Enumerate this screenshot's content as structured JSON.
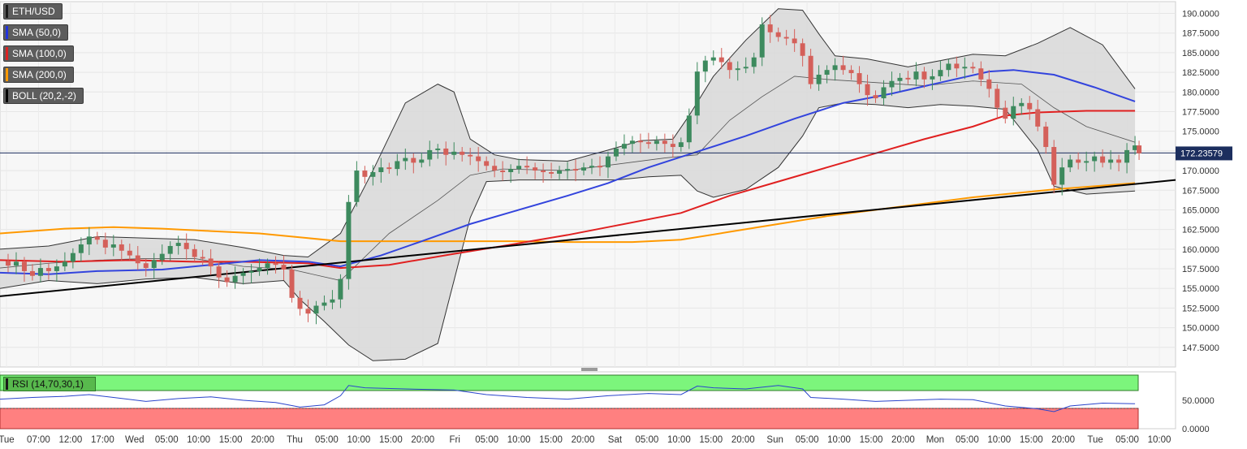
{
  "legend": [
    {
      "label": "ETH/USD",
      "color": "#1a1a1a"
    },
    {
      "label": "SMA (50,0)",
      "color": "#2233dd"
    },
    {
      "label": "SMA (100,0)",
      "color": "#dd2222"
    },
    {
      "label": "SMA (200,0)",
      "color": "#ff9900"
    },
    {
      "label": "BOLL (20,2,-2)",
      "color": "#000000"
    }
  ],
  "rsi_label": "RSI (14,70,30,1)",
  "current_price_label": "172.23579",
  "colors": {
    "bull": "#3d8a5e",
    "bear": "#d4605a",
    "sma50": "#3344dd",
    "sma100": "#e02020",
    "sma200": "#ff9900",
    "trend": "#000000",
    "rsi_line": "#2a44cc",
    "rsi_overbought": "#7cf57c",
    "rsi_oversold": "#ff8080"
  },
  "chart_data": {
    "type": "candlestick",
    "y_range": [
      145.0,
      191.5
    ],
    "y_ticks": [
      "190.0000",
      "187.5000",
      "185.0000",
      "182.5000",
      "180.0000",
      "177.5000",
      "175.0000",
      "172.5000",
      "170.0000",
      "167.5000",
      "165.0000",
      "162.5000",
      "160.0000",
      "157.5000",
      "155.0000",
      "152.5000",
      "150.0000",
      "147.5000"
    ],
    "current_price": 172.23579,
    "x_ticks": [
      "Tue",
      "07:00",
      "12:00",
      "17:00",
      "Wed",
      "05:00",
      "10:00",
      "15:00",
      "20:00",
      "Thu",
      "05:00",
      "10:00",
      "15:00",
      "20:00",
      "Fri",
      "05:00",
      "10:00",
      "15:00",
      "20:00",
      "Sat",
      "05:00",
      "10:00",
      "15:00",
      "20:00",
      "Sun",
      "05:00",
      "10:00",
      "15:00",
      "20:00",
      "Mon",
      "05:00",
      "10:00",
      "15:00",
      "20:00",
      "Tue",
      "05:00",
      "10:00"
    ],
    "close_path": [
      [
        0,
        158.5
      ],
      [
        10,
        157.9
      ],
      [
        20,
        158.4
      ],
      [
        30,
        157.2
      ],
      [
        40,
        156.6
      ],
      [
        50,
        157.6
      ],
      [
        60,
        157.2
      ],
      [
        70,
        157.8
      ],
      [
        80,
        158.4
      ],
      [
        90,
        159.5
      ],
      [
        100,
        160.6
      ],
      [
        110,
        161.6
      ],
      [
        120,
        161.2
      ],
      [
        130,
        160.2
      ],
      [
        140,
        160.6
      ],
      [
        150,
        159.8
      ],
      [
        160,
        159.2
      ],
      [
        170,
        158.2
      ],
      [
        180,
        157.6
      ],
      [
        190,
        158.6
      ],
      [
        200,
        159.4
      ],
      [
        210,
        160.4
      ],
      [
        220,
        160.8
      ],
      [
        230,
        160.0
      ],
      [
        240,
        159.0
      ],
      [
        250,
        158.8
      ],
      [
        260,
        157.8
      ],
      [
        270,
        156.4
      ],
      [
        280,
        155.8
      ],
      [
        290,
        156.6
      ],
      [
        300,
        157.0
      ],
      [
        310,
        157.2
      ],
      [
        320,
        157.6
      ],
      [
        330,
        158.2
      ],
      [
        340,
        158.0
      ],
      [
        350,
        157.4
      ],
      [
        360,
        153.8
      ],
      [
        370,
        152.4
      ],
      [
        380,
        151.8
      ],
      [
        390,
        152.8
      ],
      [
        400,
        153.2
      ],
      [
        410,
        153.6
      ],
      [
        420,
        156.2
      ],
      [
        430,
        166.0
      ],
      [
        440,
        170.0
      ],
      [
        450,
        169.2
      ],
      [
        460,
        169.8
      ],
      [
        470,
        170.4
      ],
      [
        480,
        170.2
      ],
      [
        490,
        171.2
      ],
      [
        500,
        171.6
      ],
      [
        510,
        171.0
      ],
      [
        520,
        171.4
      ],
      [
        530,
        172.6
      ],
      [
        540,
        172.8
      ],
      [
        550,
        172.0
      ],
      [
        560,
        172.4
      ],
      [
        570,
        172.0
      ],
      [
        580,
        171.8
      ],
      [
        590,
        171.2
      ],
      [
        600,
        170.6
      ],
      [
        610,
        170.0
      ],
      [
        620,
        169.8
      ],
      [
        630,
        170.2
      ],
      [
        640,
        170.6
      ],
      [
        650,
        170.4
      ],
      [
        660,
        170.0
      ],
      [
        670,
        169.8
      ],
      [
        680,
        169.6
      ],
      [
        690,
        170.0
      ],
      [
        700,
        170.2
      ],
      [
        710,
        170.0
      ],
      [
        720,
        170.4
      ],
      [
        730,
        170.6
      ],
      [
        740,
        170.4
      ],
      [
        750,
        171.8
      ],
      [
        760,
        172.8
      ],
      [
        770,
        173.4
      ],
      [
        780,
        173.8
      ],
      [
        790,
        173.6
      ],
      [
        800,
        173.4
      ],
      [
        810,
        173.8
      ],
      [
        820,
        173.4
      ],
      [
        830,
        173.0
      ],
      [
        840,
        173.6
      ],
      [
        850,
        177.0
      ],
      [
        860,
        182.6
      ],
      [
        870,
        184.0
      ],
      [
        880,
        184.4
      ],
      [
        890,
        183.8
      ],
      [
        900,
        182.8
      ],
      [
        910,
        183.0
      ],
      [
        920,
        183.2
      ],
      [
        930,
        184.4
      ],
      [
        940,
        188.6
      ],
      [
        950,
        187.6
      ],
      [
        960,
        187.0
      ],
      [
        970,
        186.8
      ],
      [
        980,
        186.2
      ],
      [
        990,
        184.6
      ],
      [
        1000,
        181.0
      ],
      [
        1010,
        182.2
      ],
      [
        1020,
        182.8
      ],
      [
        1030,
        183.4
      ],
      [
        1040,
        182.8
      ],
      [
        1050,
        182.4
      ],
      [
        1060,
        181.0
      ],
      [
        1070,
        179.6
      ],
      [
        1080,
        179.2
      ],
      [
        1090,
        180.6
      ],
      [
        1100,
        181.4
      ],
      [
        1110,
        181.8
      ],
      [
        1120,
        181.6
      ],
      [
        1130,
        182.6
      ],
      [
        1140,
        181.6
      ],
      [
        1150,
        182.0
      ],
      [
        1160,
        182.8
      ],
      [
        1170,
        183.6
      ],
      [
        1180,
        183.0
      ],
      [
        1190,
        183.2
      ],
      [
        1200,
        183.0
      ],
      [
        1210,
        181.6
      ],
      [
        1220,
        180.4
      ],
      [
        1230,
        178.0
      ],
      [
        1240,
        176.6
      ],
      [
        1250,
        178.2
      ],
      [
        1260,
        178.6
      ],
      [
        1270,
        177.8
      ],
      [
        1280,
        175.6
      ],
      [
        1290,
        173.0
      ],
      [
        1300,
        168.2
      ],
      [
        1310,
        170.4
      ],
      [
        1320,
        171.4
      ],
      [
        1330,
        171.0
      ],
      [
        1340,
        171.2
      ],
      [
        1350,
        171.8
      ],
      [
        1360,
        171.0
      ],
      [
        1370,
        171.4
      ],
      [
        1380,
        171.0
      ],
      [
        1390,
        172.6
      ],
      [
        1400,
        173.2
      ],
      [
        1405,
        172.2
      ]
    ],
    "sma50": [
      [
        0,
        157.0
      ],
      [
        60,
        156.8
      ],
      [
        120,
        157.2
      ],
      [
        200,
        157.4
      ],
      [
        260,
        158.0
      ],
      [
        320,
        158.6
      ],
      [
        380,
        158.4
      ],
      [
        420,
        157.8
      ],
      [
        470,
        159.2
      ],
      [
        520,
        161.0
      ],
      [
        580,
        163.2
      ],
      [
        640,
        165.0
      ],
      [
        700,
        166.8
      ],
      [
        750,
        168.4
      ],
      [
        800,
        170.4
      ],
      [
        860,
        172.4
      ],
      [
        920,
        174.4
      ],
      [
        980,
        176.6
      ],
      [
        1040,
        178.6
      ],
      [
        1100,
        179.8
      ],
      [
        1160,
        181.2
      ],
      [
        1220,
        182.6
      ],
      [
        1250,
        182.8
      ],
      [
        1300,
        182.2
      ],
      [
        1350,
        180.6
      ],
      [
        1400,
        178.8
      ]
    ],
    "sma100": [
      [
        0,
        158.6
      ],
      [
        80,
        158.4
      ],
      [
        160,
        158.6
      ],
      [
        240,
        158.4
      ],
      [
        300,
        158.4
      ],
      [
        380,
        158.2
      ],
      [
        420,
        157.6
      ],
      [
        480,
        158.0
      ],
      [
        560,
        159.4
      ],
      [
        620,
        160.4
      ],
      [
        700,
        161.8
      ],
      [
        760,
        163.0
      ],
      [
        840,
        164.6
      ],
      [
        900,
        166.8
      ],
      [
        960,
        168.6
      ],
      [
        1020,
        170.4
      ],
      [
        1080,
        172.2
      ],
      [
        1140,
        174.0
      ],
      [
        1200,
        175.6
      ],
      [
        1240,
        177.0
      ],
      [
        1280,
        177.4
      ],
      [
        1340,
        177.6
      ],
      [
        1400,
        177.6
      ]
    ],
    "sma200": [
      [
        0,
        162.0
      ],
      [
        80,
        162.6
      ],
      [
        140,
        162.8
      ],
      [
        200,
        162.6
      ],
      [
        260,
        162.3
      ],
      [
        320,
        162.0
      ],
      [
        380,
        161.4
      ],
      [
        420,
        161.0
      ],
      [
        480,
        161.0
      ],
      [
        560,
        161.0
      ],
      [
        640,
        161.0
      ],
      [
        700,
        160.9
      ],
      [
        780,
        160.9
      ],
      [
        840,
        161.2
      ],
      [
        900,
        162.2
      ],
      [
        960,
        163.2
      ],
      [
        1020,
        164.2
      ],
      [
        1080,
        165.0
      ],
      [
        1140,
        165.8
      ],
      [
        1200,
        166.6
      ],
      [
        1260,
        167.2
      ],
      [
        1300,
        167.6
      ],
      [
        1350,
        168.0
      ],
      [
        1400,
        168.4
      ]
    ],
    "boll_upper": [
      [
        0,
        160.0
      ],
      [
        60,
        160.4
      ],
      [
        120,
        161.6
      ],
      [
        180,
        161.4
      ],
      [
        240,
        161.2
      ],
      [
        300,
        160.2
      ],
      [
        350,
        159.2
      ],
      [
        380,
        159.0
      ],
      [
        420,
        162.0
      ],
      [
        460,
        170.0
      ],
      [
        500,
        178.6
      ],
      [
        540,
        181.0
      ],
      [
        560,
        180.0
      ],
      [
        580,
        174.0
      ],
      [
        610,
        172.0
      ],
      [
        640,
        171.4
      ],
      [
        700,
        171.2
      ],
      [
        750,
        172.6
      ],
      [
        790,
        173.8
      ],
      [
        830,
        174.0
      ],
      [
        850,
        177.0
      ],
      [
        880,
        182.0
      ],
      [
        920,
        186.6
      ],
      [
        960,
        190.6
      ],
      [
        990,
        190.4
      ],
      [
        1010,
        187.4
      ],
      [
        1030,
        184.6
      ],
      [
        1070,
        184.2
      ],
      [
        1120,
        183.2
      ],
      [
        1160,
        184.0
      ],
      [
        1200,
        184.8
      ],
      [
        1240,
        184.6
      ],
      [
        1280,
        186.2
      ],
      [
        1320,
        188.2
      ],
      [
        1360,
        186.0
      ],
      [
        1400,
        180.4
      ]
    ],
    "boll_lower": [
      [
        0,
        155.0
      ],
      [
        60,
        156.0
      ],
      [
        120,
        155.6
      ],
      [
        180,
        156.2
      ],
      [
        240,
        156.4
      ],
      [
        300,
        155.6
      ],
      [
        350,
        156.0
      ],
      [
        370,
        153.6
      ],
      [
        400,
        150.8
      ],
      [
        430,
        147.8
      ],
      [
        460,
        145.8
      ],
      [
        500,
        146.0
      ],
      [
        540,
        148.0
      ],
      [
        560,
        156.0
      ],
      [
        580,
        164.0
      ],
      [
        600,
        168.6
      ],
      [
        640,
        168.8
      ],
      [
        700,
        168.8
      ],
      [
        760,
        168.8
      ],
      [
        800,
        169.2
      ],
      [
        840,
        169.4
      ],
      [
        860,
        167.4
      ],
      [
        880,
        166.6
      ],
      [
        920,
        167.6
      ],
      [
        960,
        170.4
      ],
      [
        990,
        174.4
      ],
      [
        1010,
        178.0
      ],
      [
        1040,
        178.6
      ],
      [
        1080,
        178.4
      ],
      [
        1120,
        178.0
      ],
      [
        1160,
        178.4
      ],
      [
        1200,
        178.2
      ],
      [
        1240,
        177.8
      ],
      [
        1280,
        172.6
      ],
      [
        1300,
        168.0
      ],
      [
        1340,
        167.0
      ],
      [
        1400,
        167.4
      ]
    ],
    "boll_mid": [
      [
        0,
        157.6
      ],
      [
        60,
        158.2
      ],
      [
        120,
        158.6
      ],
      [
        180,
        158.8
      ],
      [
        240,
        158.8
      ],
      [
        300,
        157.8
      ],
      [
        360,
        157.4
      ],
      [
        420,
        156.0
      ],
      [
        480,
        162.0
      ],
      [
        540,
        166.2
      ],
      [
        580,
        169.4
      ],
      [
        620,
        170.2
      ],
      [
        700,
        170.0
      ],
      [
        760,
        170.8
      ],
      [
        820,
        171.6
      ],
      [
        860,
        172.0
      ],
      [
        900,
        176.4
      ],
      [
        940,
        179.4
      ],
      [
        980,
        182.0
      ],
      [
        1020,
        181.6
      ],
      [
        1080,
        181.2
      ],
      [
        1140,
        180.8
      ],
      [
        1200,
        181.4
      ],
      [
        1260,
        181.0
      ],
      [
        1300,
        178.0
      ],
      [
        1340,
        175.6
      ],
      [
        1400,
        173.6
      ]
    ],
    "trendline": [
      [
        0,
        154.0
      ],
      [
        1450,
        168.8
      ]
    ],
    "rsi": {
      "y_ticks": [
        "50.0000",
        "0.0000"
      ],
      "range": [
        0,
        100
      ],
      "overbought": 70,
      "oversold": 30,
      "values": [
        [
          0,
          52
        ],
        [
          40,
          55
        ],
        [
          80,
          57
        ],
        [
          110,
          60
        ],
        [
          140,
          55
        ],
        [
          180,
          48
        ],
        [
          220,
          53
        ],
        [
          260,
          56
        ],
        [
          300,
          50
        ],
        [
          340,
          46
        ],
        [
          370,
          38
        ],
        [
          400,
          42
        ],
        [
          420,
          58
        ],
        [
          430,
          76
        ],
        [
          450,
          72
        ],
        [
          500,
          70
        ],
        [
          560,
          68
        ],
        [
          600,
          60
        ],
        [
          650,
          55
        ],
        [
          700,
          52
        ],
        [
          750,
          58
        ],
        [
          800,
          62
        ],
        [
          840,
          60
        ],
        [
          860,
          75
        ],
        [
          880,
          72
        ],
        [
          920,
          70
        ],
        [
          960,
          76
        ],
        [
          990,
          70
        ],
        [
          1000,
          55
        ],
        [
          1040,
          52
        ],
        [
          1080,
          48
        ],
        [
          1120,
          50
        ],
        [
          1160,
          52
        ],
        [
          1200,
          51
        ],
        [
          1240,
          40
        ],
        [
          1280,
          35
        ],
        [
          1300,
          30
        ],
        [
          1320,
          40
        ],
        [
          1360,
          45
        ],
        [
          1400,
          44
        ]
      ]
    }
  }
}
